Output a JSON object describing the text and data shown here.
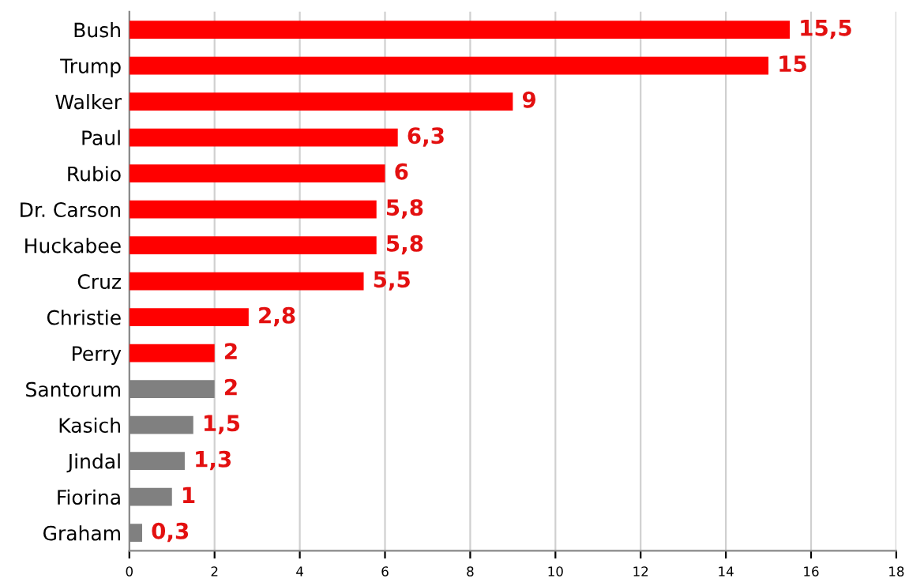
{
  "chart_data": {
    "type": "bar",
    "orientation": "horizontal",
    "categories": [
      "Bush",
      "Trump",
      "Walker",
      "Paul",
      "Rubio",
      "Dr. Carson",
      "Huckabee",
      "Cruz",
      "Christie",
      "Perry",
      "Santorum",
      "Kasich",
      "Jindal",
      "Fiorina",
      "Graham"
    ],
    "values": [
      15.5,
      15,
      9,
      6.3,
      6,
      5.8,
      5.8,
      5.5,
      2.8,
      2,
      2,
      1.5,
      1.3,
      1,
      0.3
    ],
    "colors": [
      "#ff0000",
      "#ff0000",
      "#ff0000",
      "#ff0000",
      "#ff0000",
      "#ff0000",
      "#ff0000",
      "#ff0000",
      "#ff0000",
      "#ff0000",
      "#808080",
      "#808080",
      "#808080",
      "#808080",
      "#808080"
    ],
    "value_labels": [
      "15,5",
      "15",
      "9",
      "6,3",
      "6",
      "5,8",
      "5,8",
      "5,5",
      "2,8",
      "2",
      "2",
      "1,5",
      "1,3",
      "1",
      "0,3"
    ],
    "xlim": [
      0,
      18
    ],
    "xticks": [
      0,
      2,
      4,
      6,
      8,
      10,
      12,
      14,
      16,
      18
    ],
    "grid": "x"
  }
}
